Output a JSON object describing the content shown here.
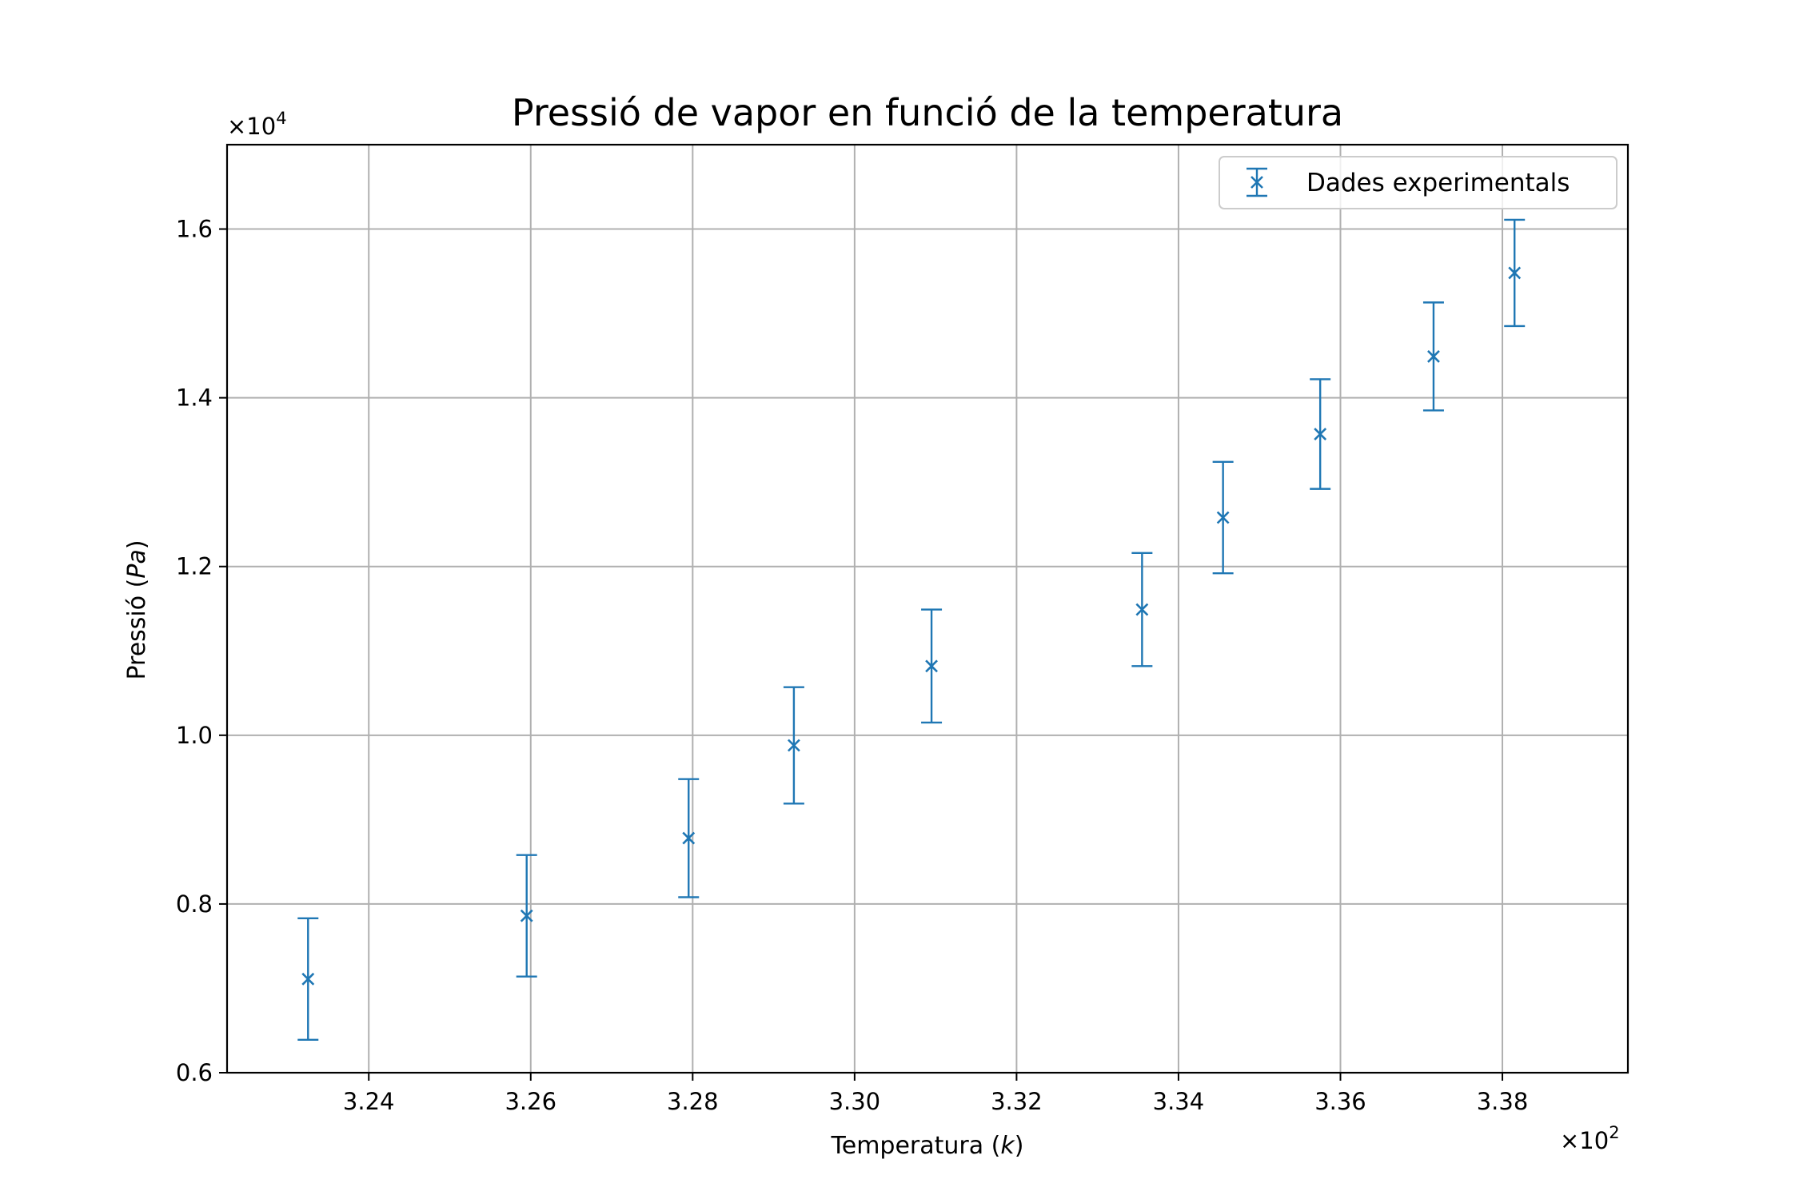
{
  "chart_data": {
    "type": "scatter",
    "title": "Pressió de vapor en funció de la temperatura",
    "xlabel": "Temperatura",
    "xlabel_unit": "k",
    "ylabel": "Pressió",
    "ylabel_unit": "Pa",
    "x_multiplier_base": "×10",
    "x_multiplier_exp": "2",
    "y_multiplier_base": "×10",
    "y_multiplier_exp": "4",
    "xlim": [
      3.2225,
      3.3955
    ],
    "ylim": [
      0.6,
      1.7
    ],
    "xticks": [
      3.24,
      3.26,
      3.28,
      3.3,
      3.32,
      3.34,
      3.36,
      3.38
    ],
    "xtick_labels": [
      "3.24",
      "3.26",
      "3.28",
      "3.30",
      "3.32",
      "3.34",
      "3.36",
      "3.38"
    ],
    "yticks": [
      0.6,
      0.8,
      1.0,
      1.2,
      1.4,
      1.6
    ],
    "ytick_labels": [
      "0.6",
      "0.8",
      "1.0",
      "1.2",
      "1.4",
      "1.6"
    ],
    "grid": true,
    "legend_position": "top-right",
    "series": [
      {
        "name": "Dades experimentals",
        "color": "#1f77b4",
        "marker": "x",
        "x": [
          3.2325,
          3.2595,
          3.2795,
          3.2925,
          3.3095,
          3.3355,
          3.3455,
          3.3575,
          3.3715,
          3.3815
        ],
        "y": [
          0.711,
          0.786,
          0.878,
          0.988,
          1.082,
          1.149,
          1.258,
          1.357,
          1.449,
          1.548
        ],
        "yerr": [
          0.072,
          0.072,
          0.07,
          0.069,
          0.067,
          0.067,
          0.066,
          0.065,
          0.064,
          0.063
        ]
      }
    ]
  }
}
